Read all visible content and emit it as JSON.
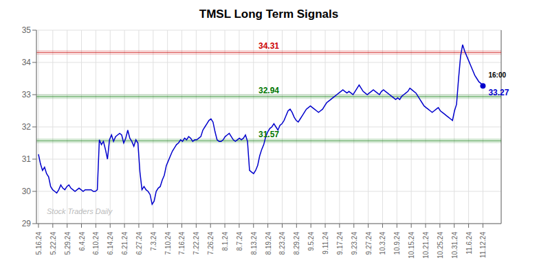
{
  "chart_data": {
    "type": "line",
    "title": "TMSL Long Term Signals",
    "color": "#0000cc",
    "grid": true,
    "x": [
      0,
      1,
      2,
      3,
      4,
      5,
      6,
      7,
      8,
      9,
      10,
      11,
      12,
      13,
      14,
      15,
      16,
      17,
      18,
      19,
      20,
      21,
      22,
      23,
      24,
      25,
      26,
      27,
      28,
      29,
      30,
      31,
      32,
      33,
      34,
      35,
      36,
      37,
      38,
      39,
      40,
      41,
      42,
      43,
      44,
      45,
      46,
      47,
      48,
      49,
      50,
      51,
      52,
      53,
      54,
      55,
      56,
      57,
      58,
      59,
      60,
      61,
      62,
      63,
      64,
      65,
      66,
      67,
      68,
      69,
      70,
      71,
      72,
      73,
      74,
      75,
      76,
      77,
      78,
      79,
      80,
      81,
      82,
      83,
      84,
      85,
      86,
      87,
      88,
      89,
      90,
      91,
      92,
      93,
      94,
      95,
      96,
      97,
      98,
      99,
      100,
      101,
      102,
      103,
      104,
      105,
      106,
      107,
      108,
      109,
      110,
      111,
      112,
      113,
      114,
      115,
      116,
      117,
      118,
      119,
      120,
      121,
      122,
      123,
      124,
      125,
      126,
      127,
      128,
      129,
      130,
      131,
      132,
      133,
      134,
      135,
      136,
      137,
      138,
      139,
      140,
      141,
      142,
      143,
      144,
      145,
      146,
      147,
      148,
      149,
      150,
      151,
      152,
      153,
      154,
      155,
      156,
      157,
      158,
      159,
      160,
      161,
      162,
      163,
      164,
      165,
      166,
      167,
      168,
      169,
      170,
      171,
      172,
      173,
      174,
      175,
      176,
      177,
      178,
      179,
      180,
      181,
      182,
      183,
      184,
      185,
      186,
      187,
      188,
      189,
      190,
      191,
      192,
      193,
      194,
      195,
      196,
      197,
      198,
      199,
      200,
      201,
      202,
      203,
      204,
      205,
      206,
      207,
      208,
      209,
      210,
      211,
      212,
      213,
      214,
      215,
      216,
      217,
      218,
      219
    ],
    "values": [
      31.15,
      30.85,
      30.65,
      30.75,
      30.55,
      30.45,
      30.15,
      30.05,
      30.0,
      29.95,
      30.05,
      30.2,
      30.1,
      30.05,
      30.15,
      30.2,
      30.1,
      30.05,
      30.0,
      30.05,
      30.1,
      30.05,
      30.0,
      30.05,
      30.05,
      30.05,
      30.05,
      30.0,
      30.0,
      30.05,
      31.6,
      31.45,
      31.55,
      31.3,
      31.0,
      31.6,
      31.75,
      31.55,
      31.7,
      31.75,
      31.8,
      31.75,
      31.5,
      31.65,
      31.9,
      31.65,
      31.55,
      31.4,
      31.6,
      31.5,
      30.6,
      30.05,
      30.15,
      30.05,
      30.0,
      29.9,
      29.6,
      29.7,
      30.0,
      30.1,
      30.15,
      30.35,
      30.5,
      30.8,
      30.95,
      31.1,
      31.25,
      31.35,
      31.45,
      31.5,
      31.6,
      31.55,
      31.65,
      31.6,
      31.7,
      31.65,
      31.55,
      31.6,
      31.6,
      31.65,
      31.7,
      31.9,
      32.0,
      32.1,
      32.2,
      32.25,
      32.15,
      31.85,
      31.6,
      31.55,
      31.55,
      31.6,
      31.7,
      31.75,
      31.8,
      31.7,
      31.6,
      31.55,
      31.6,
      31.65,
      31.6,
      31.65,
      31.75,
      31.55,
      30.65,
      30.6,
      30.55,
      30.65,
      30.8,
      31.1,
      31.3,
      31.45,
      31.7,
      31.85,
      31.95,
      32.0,
      32.1,
      32.0,
      31.9,
      32.05,
      32.1,
      32.2,
      32.35,
      32.5,
      32.55,
      32.45,
      32.3,
      32.2,
      32.15,
      32.25,
      32.35,
      32.45,
      32.55,
      32.6,
      32.65,
      32.6,
      32.55,
      32.5,
      32.45,
      32.5,
      32.55,
      32.65,
      32.75,
      32.8,
      32.85,
      32.9,
      32.95,
      33.0,
      33.05,
      33.1,
      33.15,
      33.1,
      33.05,
      33.1,
      33.05,
      33.0,
      33.1,
      33.2,
      33.3,
      33.2,
      33.1,
      33.05,
      33.0,
      33.05,
      33.1,
      33.15,
      33.1,
      33.05,
      33.0,
      33.1,
      33.15,
      33.1,
      33.05,
      33.0,
      32.95,
      32.9,
      32.85,
      32.9,
      32.85,
      32.95,
      33.0,
      33.05,
      33.1,
      33.2,
      33.15,
      33.1,
      33.05,
      32.95,
      32.85,
      32.75,
      32.65,
      32.6,
      32.55,
      32.5,
      32.45,
      32.5,
      32.55,
      32.6,
      32.5,
      32.45,
      32.4,
      32.35,
      32.3,
      32.25,
      32.2,
      32.5,
      32.7,
      33.5,
      34.2,
      34.55,
      34.35,
      34.2,
      34.05,
      33.9,
      33.75,
      33.6,
      33.5,
      33.4,
      33.35,
      33.27
    ],
    "xlim": [
      -1,
      228
    ],
    "xticks": [
      {
        "value": 0,
        "label": "5.16.24"
      },
      {
        "value": 7.064516129,
        "label": "5.22.24"
      },
      {
        "value": 14.129032258,
        "label": "5.29.24"
      },
      {
        "value": 21.193548387,
        "label": "6.4.24"
      },
      {
        "value": 28.258064516,
        "label": "6.10.24"
      },
      {
        "value": 35.322580645,
        "label": "6.14.24"
      },
      {
        "value": 42.387096774,
        "label": "6.21.24"
      },
      {
        "value": 49.451612903,
        "label": "6.27.24"
      },
      {
        "value": 56.516129032,
        "label": "7.3.24"
      },
      {
        "value": 63.580645161,
        "label": "7.10.24"
      },
      {
        "value": 70.64516129,
        "label": "7.16.24"
      },
      {
        "value": 77.709677419,
        "label": "7.22.24"
      },
      {
        "value": 84.774193548,
        "label": "7.26.24"
      },
      {
        "value": 91.838709677,
        "label": "8.1.24"
      },
      {
        "value": 98.903225806,
        "label": "8.7.24"
      },
      {
        "value": 105.967741935,
        "label": "8.13.24"
      },
      {
        "value": 113.032258065,
        "label": "8.19.24"
      },
      {
        "value": 120.096774194,
        "label": "8.23.24"
      },
      {
        "value": 127.161290323,
        "label": "8.29.24"
      },
      {
        "value": 134.225806452,
        "label": "9.5.24"
      },
      {
        "value": 141.290322581,
        "label": "9.11.24"
      },
      {
        "value": 148.35483871,
        "label": "9.17.24"
      },
      {
        "value": 155.419354839,
        "label": "9.23.24"
      },
      {
        "value": 162.483870968,
        "label": "9.27.24"
      },
      {
        "value": 169.548387097,
        "label": "10.3.24"
      },
      {
        "value": 176.612903226,
        "label": "10.9.24"
      },
      {
        "value": 183.677419355,
        "label": "10.15.24"
      },
      {
        "value": 190.741935484,
        "label": "10.21.24"
      },
      {
        "value": 197.806451613,
        "label": "10.25.24"
      },
      {
        "value": 204.870967742,
        "label": "10.31.24"
      },
      {
        "value": 211.935483871,
        "label": "11.6.24"
      },
      {
        "value": 219,
        "label": "11.12.24"
      }
    ],
    "ylim": [
      29,
      35
    ],
    "yticks": [
      29,
      30,
      31,
      32,
      33,
      34,
      35
    ],
    "hlines": [
      {
        "value": 34.31,
        "label": "34.31",
        "color": "#cc0000"
      },
      {
        "value": 32.94,
        "label": "32.94",
        "color": "#007700"
      },
      {
        "value": 31.57,
        "label": "31.57",
        "color": "#007700"
      }
    ],
    "annotations": [
      {
        "text": "16:00",
        "color": "#000000"
      },
      {
        "text": "33.27",
        "color": "#0000cc"
      }
    ],
    "watermark": "Stock Traders Daily"
  }
}
